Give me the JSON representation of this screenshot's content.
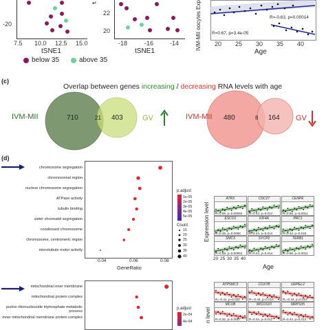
{
  "panel_b": {
    "tsne_y_ticks_left": [
      "-20"
    ],
    "tsne_x_ticks_left": [
      "7.5",
      "10.0",
      "12.5",
      "15.0"
    ],
    "tsne_y_ticks_mid": [
      "22",
      "20"
    ],
    "tsne_x_ticks_mid": [
      "-18",
      "-16",
      "-14"
    ],
    "xlabel": "tSNE1",
    "legend": [
      {
        "label": "below 35",
        "color": "#8b1a5a"
      },
      {
        "label": "above 35",
        "color": "#6fd0a0"
      }
    ],
    "regression": {
      "ylabel": "IVM-MII oocytes Exp",
      "xlabel": "Age",
      "x_ticks": [
        "20",
        "25",
        "30",
        "35",
        "40"
      ],
      "stat_upper": "R=-0.63, p=0.00014",
      "stat_lower": "R=0.67, p=3.4e-05"
    }
  },
  "panel_c": {
    "label": "(c)",
    "title_prefix": "Overlap between genes ",
    "title_inc": "increasing",
    "title_sep": " / ",
    "title_dec": "decreasing",
    "title_suffix": " RNA levels with age",
    "colors": {
      "inc": "#2e8b2e",
      "dec": "#e0302a"
    },
    "left_venn": {
      "set_a": "IVM-MII",
      "set_b": "GV",
      "only_a": "710",
      "both": "21",
      "only_b": "403",
      "arrow": "up"
    },
    "right_venn": {
      "set_a": "IVM-MII",
      "set_b": "GV",
      "only_a": "480",
      "both": "8",
      "only_b": "164",
      "arrow": "down"
    }
  },
  "panel_d": {
    "label": "(d)",
    "chart_data": [
      {
        "type": "scatter",
        "categories": [
          "chromosome segregation",
          "chromosomal region",
          "nuclear chromosome segregation",
          "ATPase activity",
          "tubulin binding",
          "sister chromatid segregation",
          "condensed chromosome",
          "chromosome, centromeric region",
          "microtubule motor activity"
        ],
        "x": [
          0.078,
          0.064,
          0.065,
          0.062,
          0.063,
          0.061,
          0.058,
          0.055,
          0.04
        ],
        "xlabel": "GeneRatio",
        "x_ticks": [
          "0.04",
          "0.06",
          "0.08"
        ],
        "xlim": [
          0.03,
          0.085
        ],
        "highlight": "chromosome segregation",
        "legend_color_title": "p.adjust",
        "legend_color_ticks": [
          "1e-05",
          "2e-05",
          "3e-05",
          "4e-05",
          "5e-05"
        ],
        "legend_size_title": "Count",
        "legend_size_ticks": [
          "15",
          "20",
          "25",
          "30",
          "35",
          "40"
        ]
      },
      {
        "type": "scatter",
        "categories": [
          "mitochondrial inner membrane",
          "mitochondrial protein complex",
          "purine ribonucleoside triphosphate metabolic process",
          "inner mitochondrial membrane protein complex"
        ],
        "x": [
          0.082,
          0.063,
          0.064,
          0.066
        ],
        "xlim": [
          0.03,
          0.085
        ],
        "highlight": "mitochondrial inner membrane",
        "legend_color_title": "p.adjust",
        "legend_color_ticks": [
          "2e-04",
          "4e-04"
        ]
      }
    ],
    "gene_panels_inc": {
      "ylabel": "Expression level",
      "xlabel": "Age",
      "x_ticks": [
        "20",
        "25",
        "30",
        "35",
        "40"
      ],
      "y_ticks": [
        "6",
        "4",
        "2"
      ],
      "genes": [
        {
          "name": "ATRX",
          "stat": "R=0.59, p=0.00054"
        },
        {
          "name": "CDC27",
          "stat": "R=0.44, p=0.014"
        },
        {
          "name": "CENPE",
          "stat": "R=0.56, p=0.0011"
        },
        {
          "name": "ESCO1",
          "stat": "R=0.49, p=0.0066"
        },
        {
          "name": "KIF4A",
          "stat": "R=0.44, p=0.014"
        },
        {
          "name": "PRC1",
          "stat": "R=0.44, p=0.015"
        },
        {
          "name": "SMC3",
          "stat": "R=0.59, p=0.00054"
        },
        {
          "name": "SYCP2",
          "stat": "R=0.44, p=0.014"
        },
        {
          "name": "TERB1",
          "stat": "R=0.56, p=0.0011"
        }
      ]
    },
    "gene_panels_dec": {
      "ylabel": "n level",
      "y_ticks": [
        "6",
        "4",
        "2"
      ],
      "genes": [
        {
          "name": "ATP5MC3",
          "stat": "R=-0.41, p=0.022"
        },
        {
          "name": "COX7B",
          "stat": "R=-0.44, p=0.014"
        },
        {
          "name": "GRPEL2",
          "stat": "R=-0.44, p=0.014"
        },
        {
          "name": "MCUB",
          "stat": "R=0.32, p=0.0007"
        },
        {
          "name": "MICOS10",
          "stat": "R=0.44, p=0.012"
        },
        {
          "name": "MRPS35",
          "stat": "R=0.44, p=0.014"
        }
      ]
    }
  }
}
